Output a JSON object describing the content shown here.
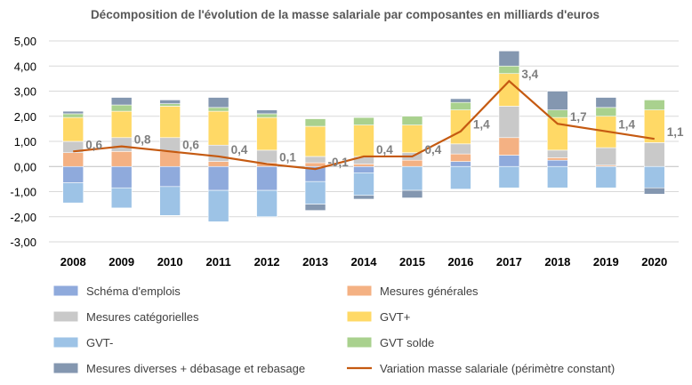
{
  "chart_data": {
    "type": "bar",
    "stacked": true,
    "title": "Décomposition de l'évolution de la masse salariale par composantes en milliards d'euros",
    "categories": [
      "2008",
      "2009",
      "2010",
      "2011",
      "2012",
      "2013",
      "2014",
      "2015",
      "2016",
      "2017",
      "2018",
      "2019",
      "2020"
    ],
    "ylim": [
      -3,
      5
    ],
    "yticks": [
      "-3,00",
      "-2,00",
      "-1,00",
      "0,00",
      "1,00",
      "2,00",
      "3,00",
      "4,00",
      "5,00"
    ],
    "grid": true,
    "legend_position": "bottom",
    "series": [
      {
        "name": "Schéma d'emplois",
        "color": "#8faadc",
        "values": [
          -0.65,
          -0.85,
          -0.8,
          -0.95,
          -0.95,
          -0.6,
          -0.25,
          0.0,
          0.2,
          0.45,
          0.25,
          0.0,
          0.0
        ]
      },
      {
        "name": "Mesures générales",
        "color": "#f4b183",
        "values": [
          0.55,
          0.6,
          0.6,
          0.2,
          0.15,
          0.15,
          0.1,
          0.25,
          0.3,
          0.7,
          0.1,
          0.05,
          0.0
        ]
      },
      {
        "name": "Mesures catégorielles",
        "color": "#c9c9c9",
        "values": [
          0.45,
          0.55,
          0.55,
          0.65,
          0.5,
          0.25,
          0.3,
          0.3,
          0.4,
          1.25,
          0.3,
          0.7,
          0.95
        ]
      },
      {
        "name": "GVT+",
        "color": "#ffd966",
        "values": [
          0.95,
          1.05,
          1.25,
          1.35,
          1.3,
          1.2,
          1.25,
          1.1,
          1.35,
          1.3,
          1.3,
          1.25,
          1.3
        ]
      },
      {
        "name": "GVT-",
        "color": "#9dc3e6",
        "values": [
          -0.8,
          -0.8,
          -1.15,
          -1.25,
          -1.05,
          -0.9,
          -0.9,
          -0.95,
          -0.9,
          -0.85,
          -0.85,
          -0.85,
          -0.85
        ]
      },
      {
        "name": "GVT solde",
        "color": "#a9d18e",
        "values": [
          0.15,
          0.25,
          0.1,
          0.15,
          0.15,
          0.3,
          0.3,
          0.35,
          0.3,
          0.3,
          0.3,
          0.35,
          0.4
        ]
      },
      {
        "name": "Mesures diverses + débasage et rebasage",
        "color": "#8497b0",
        "values": [
          0.1,
          0.3,
          0.15,
          0.4,
          0.15,
          -0.25,
          -0.15,
          -0.3,
          0.15,
          0.6,
          0.75,
          0.4,
          -0.25
        ]
      }
    ],
    "line": {
      "name": "Variation masse salariale (périmètre constant)",
      "color": "#c55a11",
      "values": [
        0.6,
        0.8,
        0.6,
        0.4,
        0.1,
        -0.1,
        0.4,
        0.4,
        1.4,
        3.4,
        1.7,
        1.4,
        1.1
      ],
      "labels": [
        "0,6",
        "0,8",
        "0,6",
        "0,4",
        "0,1",
        "-0,1",
        "0,4",
        "0,4",
        "1,4",
        "3,4",
        "1,7",
        "1,4",
        "1,1"
      ]
    }
  }
}
